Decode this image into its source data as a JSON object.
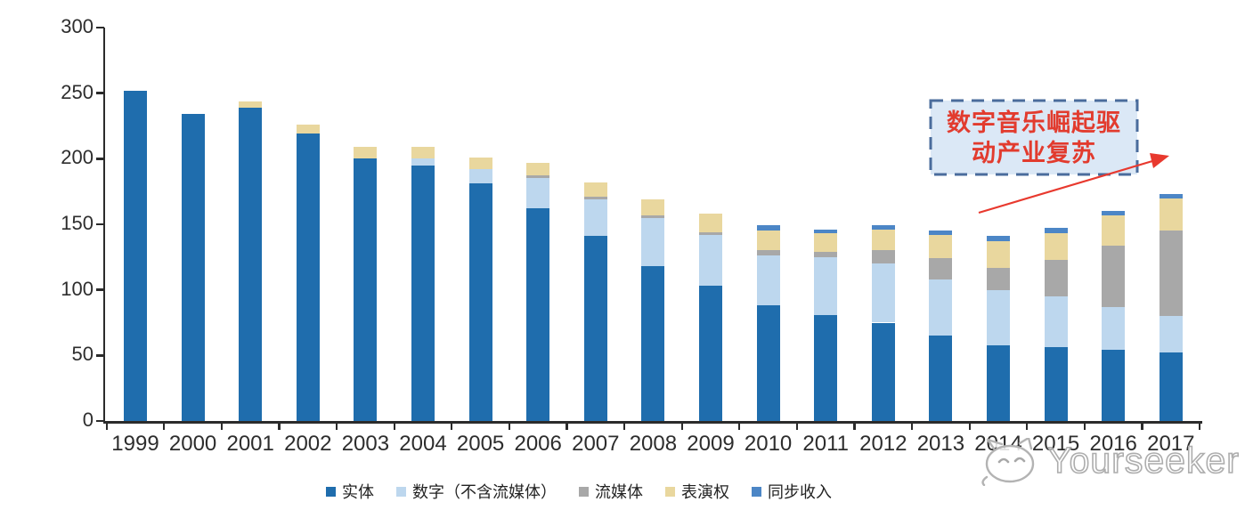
{
  "chart_data": {
    "type": "bar",
    "stacked": true,
    "title": "",
    "xlabel": "",
    "ylabel": "",
    "categories": [
      "1999",
      "2000",
      "2001",
      "2002",
      "2003",
      "2004",
      "2005",
      "2006",
      "2007",
      "2008",
      "2009",
      "2010",
      "2011",
      "2012",
      "2013",
      "2014",
      "2015",
      "2016",
      "2017"
    ],
    "series": [
      {
        "key": "physical",
        "name": "实体",
        "color": "#1f6dad",
        "values": [
          252,
          234,
          239,
          219,
          200,
          195,
          181,
          162,
          141,
          118,
          103,
          88,
          81,
          75,
          65,
          58,
          56,
          54,
          52
        ]
      },
      {
        "key": "digital_excl_streaming",
        "name": "数字（不含流媒体）",
        "color": "#bdd7ee",
        "values": [
          0,
          0,
          0,
          0,
          0,
          5,
          11,
          23,
          28,
          37,
          39,
          38,
          44,
          45,
          43,
          42,
          39,
          33,
          28
        ]
      },
      {
        "key": "streaming",
        "name": "流媒体",
        "color": "#a8a8a8",
        "values": [
          0,
          0,
          0,
          0,
          0,
          0,
          0,
          2,
          2,
          2,
          2,
          4,
          4,
          10,
          16,
          17,
          28,
          47,
          65
        ]
      },
      {
        "key": "performance_rights",
        "name": "表演权",
        "color": "#e9d79e",
        "values": [
          0,
          0,
          5,
          7,
          9,
          9,
          9,
          10,
          11,
          12,
          14,
          15,
          14,
          16,
          18,
          20,
          20,
          23,
          25
        ]
      },
      {
        "key": "sync_revenue",
        "name": "同步收入",
        "color": "#4c86c6",
        "values": [
          0,
          0,
          0,
          0,
          0,
          0,
          0,
          0,
          0,
          0,
          0,
          4,
          3,
          3,
          3,
          4,
          4,
          3,
          3
        ]
      }
    ],
    "ylim": [
      0,
      300
    ],
    "y_ticks": [
      0,
      50,
      100,
      150,
      200,
      250,
      300
    ],
    "grid": false,
    "legend_position": "bottom"
  },
  "annotation": {
    "lines": [
      "数字音乐崛起驱",
      "动产业复苏"
    ],
    "text": "数字音乐崛起驱动产业复苏",
    "text_color": "#e23b2e",
    "box_fill": "#dbe8f6",
    "box_border_color": "#4a6c9c",
    "arrow_color": "#e8392e"
  },
  "watermark": {
    "text": "Yourseeker",
    "logo": "cat-outline-logo",
    "color": "#adadad"
  },
  "axis": {
    "color": "#2b2b2b",
    "label_color": "#2d2d2d"
  }
}
